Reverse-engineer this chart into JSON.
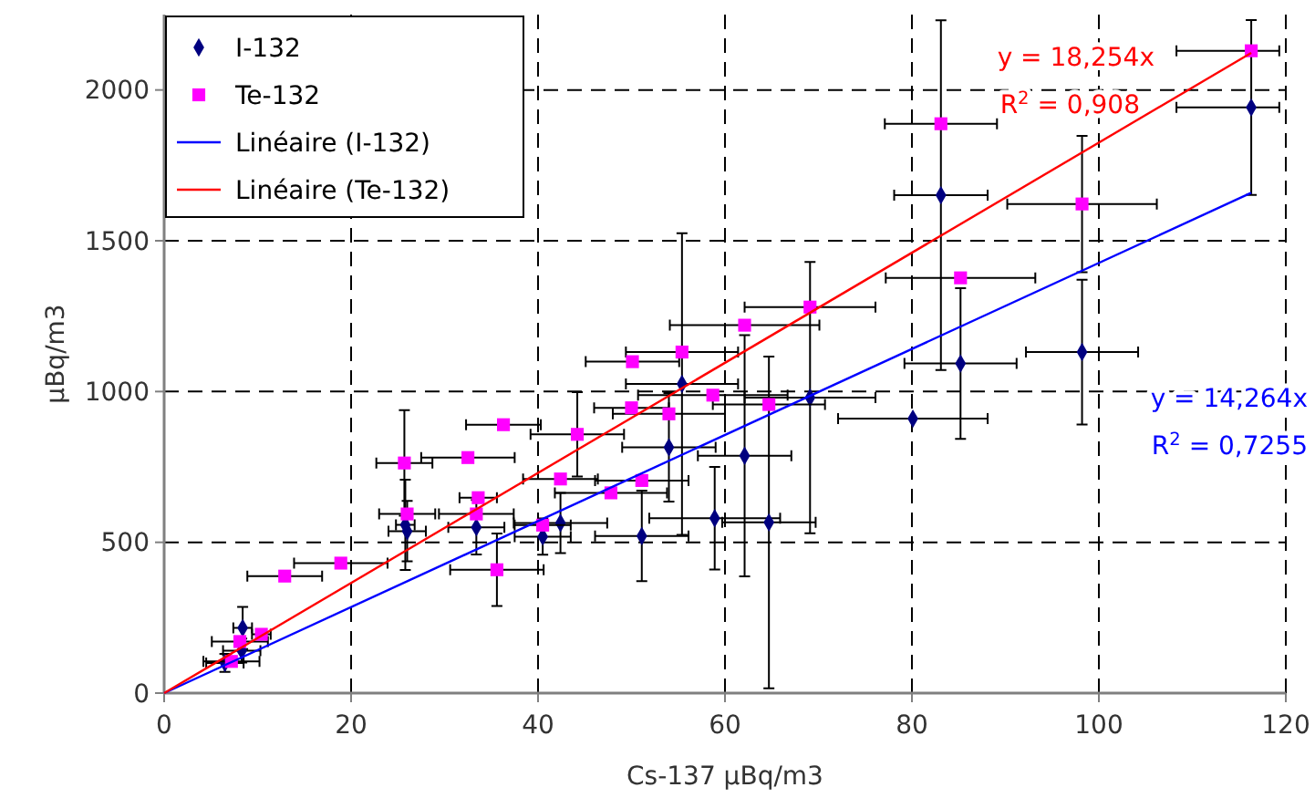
{
  "chart_data": {
    "type": "scatter",
    "xlabel": "Cs-137 µBq/m3",
    "ylabel": "µBq/m3",
    "xlim": [
      0,
      120
    ],
    "xticks": [
      0,
      20,
      40,
      60,
      80,
      100,
      120
    ],
    "ylim": [
      0,
      2250
    ],
    "yticks": [
      0,
      500,
      1000,
      1500,
      2000
    ],
    "grid": true,
    "legend": "top left",
    "series": [
      {
        "name": "I-132",
        "marker": "diamond",
        "color": "#000080",
        "x": [
          6.5,
          8.3,
          8.4,
          25.8,
          26,
          33.4,
          40.5,
          42.4,
          51.1,
          54.0,
          55.4,
          58.9,
          62.1,
          64.7,
          69.1,
          80.1,
          83.1,
          85.2,
          98.2,
          116.3
        ],
        "values": [
          100,
          141,
          216,
          558,
          537,
          550,
          519,
          564,
          521,
          815,
          1025,
          580,
          787,
          566,
          980,
          910,
          1651,
          1093,
          1131,
          1942
        ],
        "errors": [
          30,
          40,
          70,
          150,
          100,
          90,
          60,
          100,
          150,
          180,
          500,
          170,
          400,
          550,
          450,
          null,
          580,
          250,
          240,
          290
        ],
        "xerrors": [
          2,
          2,
          1,
          1,
          2,
          3,
          3,
          5,
          5,
          5,
          6,
          7,
          5,
          5,
          7,
          8,
          5,
          6,
          6,
          [
            108.3,
            119.3
          ]
        ]
      },
      {
        "name": "Te-132",
        "marker": "square",
        "color": "#ff00ff",
        "x": [
          7.2,
          8.1,
          10.4,
          12.9,
          18.9,
          25.7,
          26.0,
          32.5,
          33.6,
          33.4,
          35.6,
          36.3,
          40.5,
          42.4,
          44.2,
          47.8,
          50.1,
          50.0,
          51.1,
          54.0,
          55.4,
          58.7,
          62.1,
          64.7,
          69.1,
          83.1,
          85.2,
          98.2,
          116.3
        ],
        "values": [
          105,
          171,
          195,
          388,
          431,
          763,
          594,
          781,
          648,
          594,
          409,
          890,
          557,
          710,
          858,
          664,
          1099,
          946,
          705,
          926,
          1131,
          988,
          1220,
          957,
          1280,
          1888,
          1377,
          1622,
          2130
        ],
        "errors": [
          null,
          null,
          null,
          null,
          null,
          175,
          null,
          null,
          null,
          null,
          120,
          null,
          null,
          null,
          140,
          null,
          null,
          null,
          null,
          null,
          null,
          null,
          null,
          null,
          null,
          null,
          null,
          226,
          null
        ],
        "xerrors": [
          3,
          3,
          1,
          4,
          5,
          3,
          3,
          5,
          2,
          4,
          5,
          4,
          3,
          4,
          5,
          6,
          5,
          4,
          5,
          6,
          6,
          8,
          8,
          6,
          7,
          6,
          8,
          8,
          [
            108.3,
            119.3
          ]
        ]
      },
      {
        "name": "Linéaire (I-132)",
        "type": "line",
        "marker": "none",
        "line_style": "solid",
        "color": "#0000ff",
        "x": [
          0,
          116.3
        ],
        "values": [
          0,
          1659
        ]
      },
      {
        "name": "Linéaire (Te-132)",
        "type": "line",
        "marker": "none",
        "line_style": "solid",
        "color": "#ff0000",
        "x": [
          0,
          116.3
        ],
        "values": [
          0,
          2123
        ]
      }
    ],
    "annotations": [
      "y = 14,264x",
      "R$^{2}$ = 0,7255",
      "y = 18,254x",
      "R$^{2}$ = 0,908"
    ]
  }
}
